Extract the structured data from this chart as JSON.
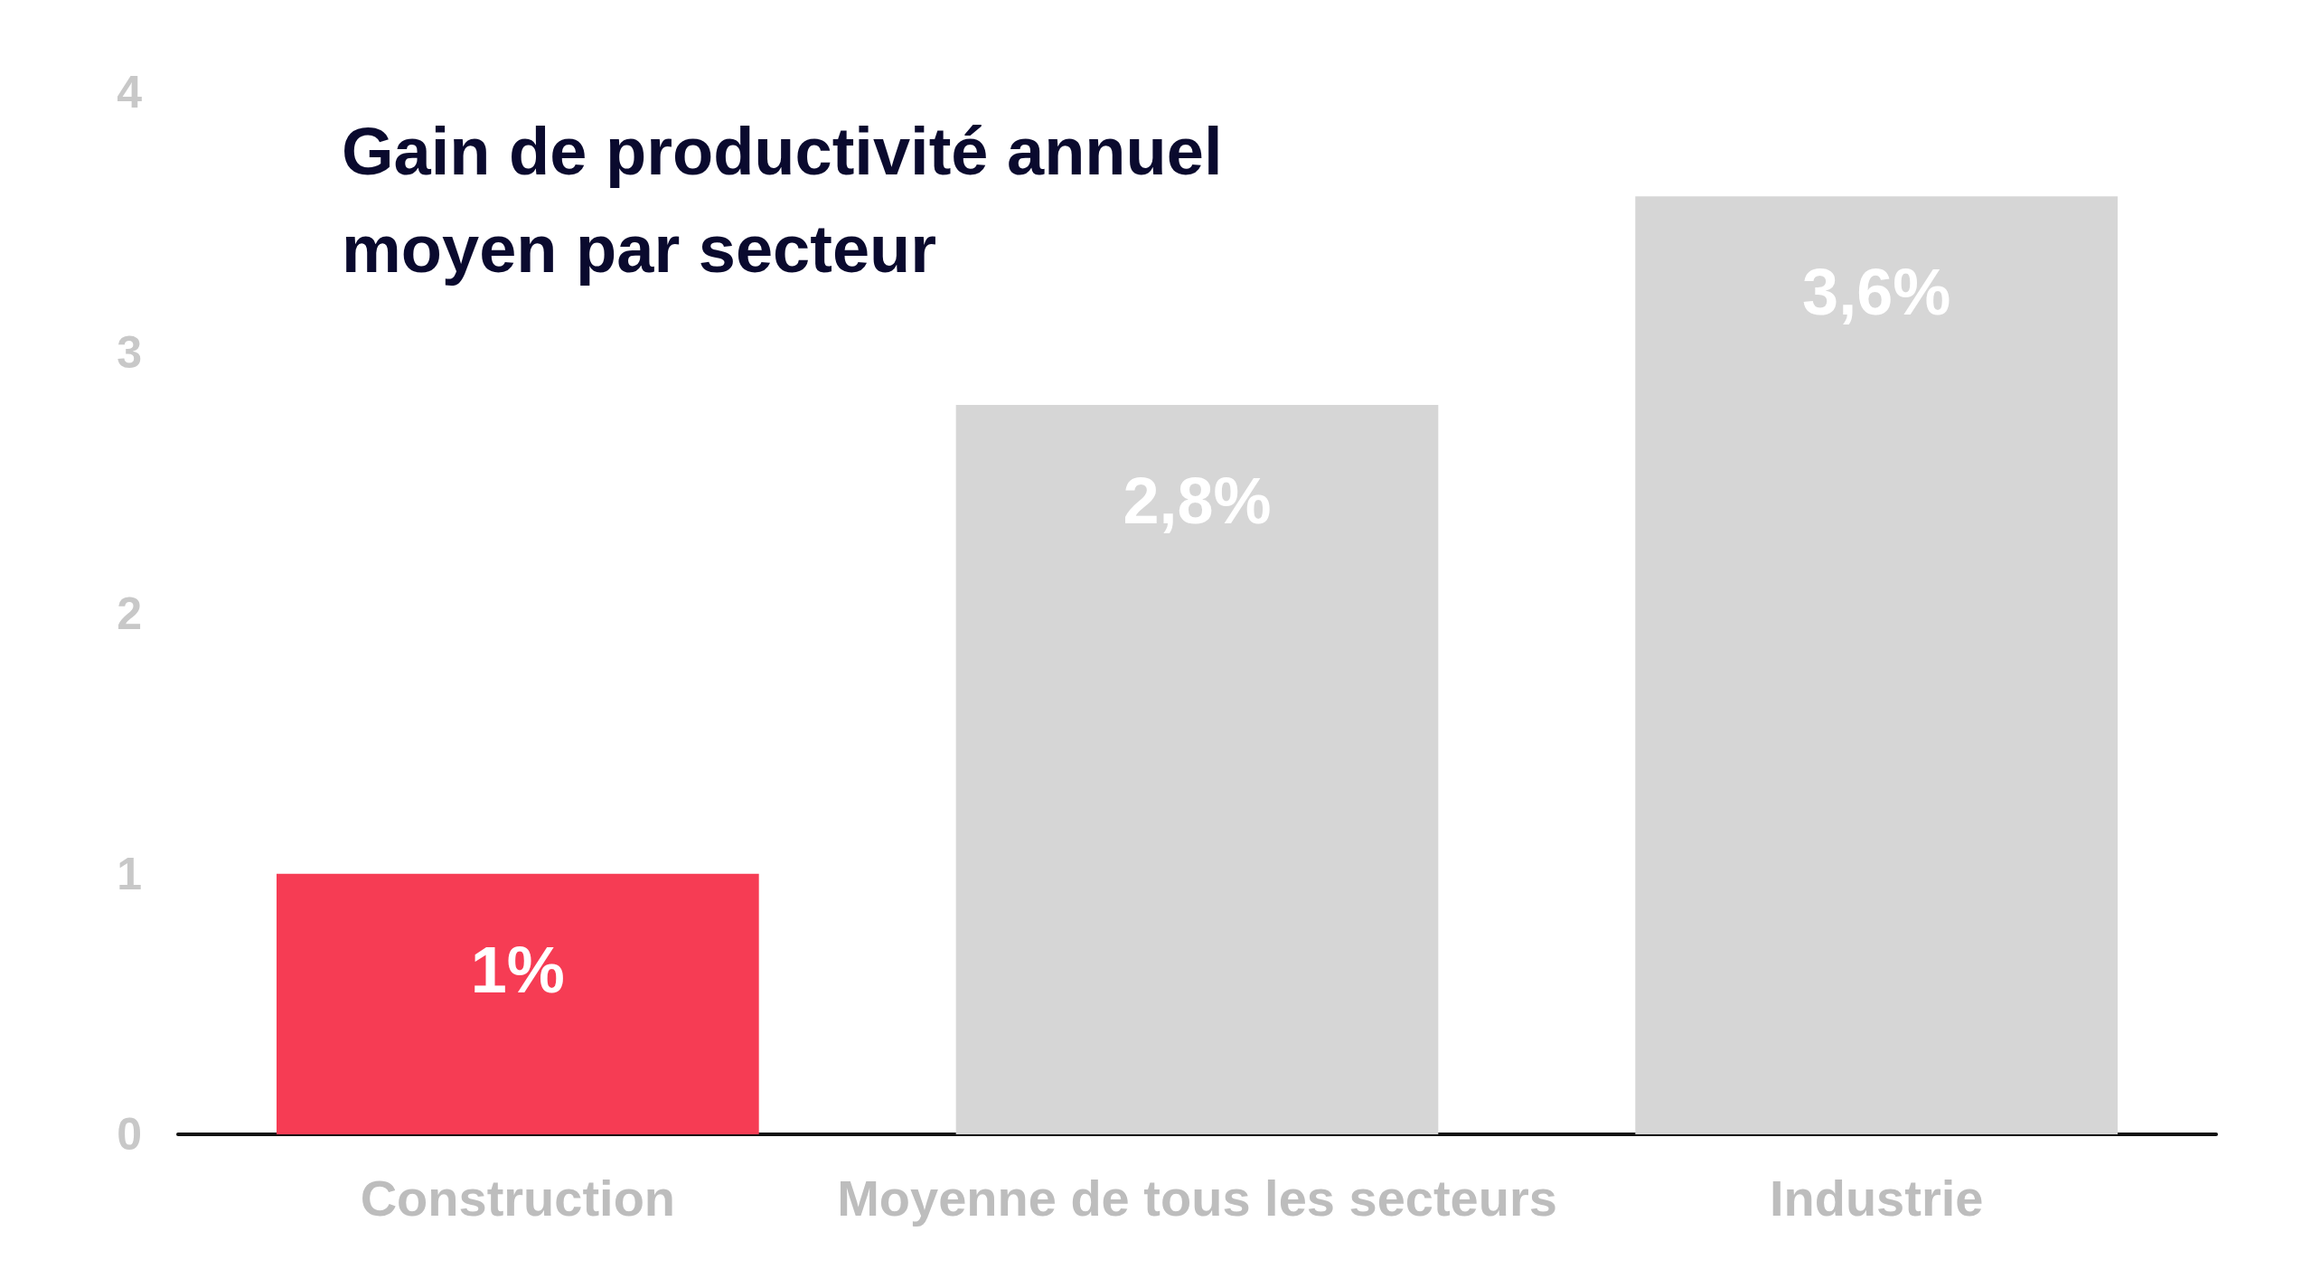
{
  "chart_data": {
    "type": "bar",
    "title": "Gain de productivité annuel\nmoyen par secteur",
    "categories": [
      "Construction",
      "Moyenne de tous les secteurs",
      "Industrie"
    ],
    "values": [
      1,
      2.8,
      3.6
    ],
    "colors": [
      "#f63c54",
      "#d6d6d6",
      "#d6d6d6"
    ],
    "value_labels": [
      "1%",
      "2,8%",
      "3,6%"
    ],
    "ylim": [
      0,
      4
    ],
    "yticks": [
      0,
      1,
      2,
      3,
      4
    ],
    "grid": false
  }
}
